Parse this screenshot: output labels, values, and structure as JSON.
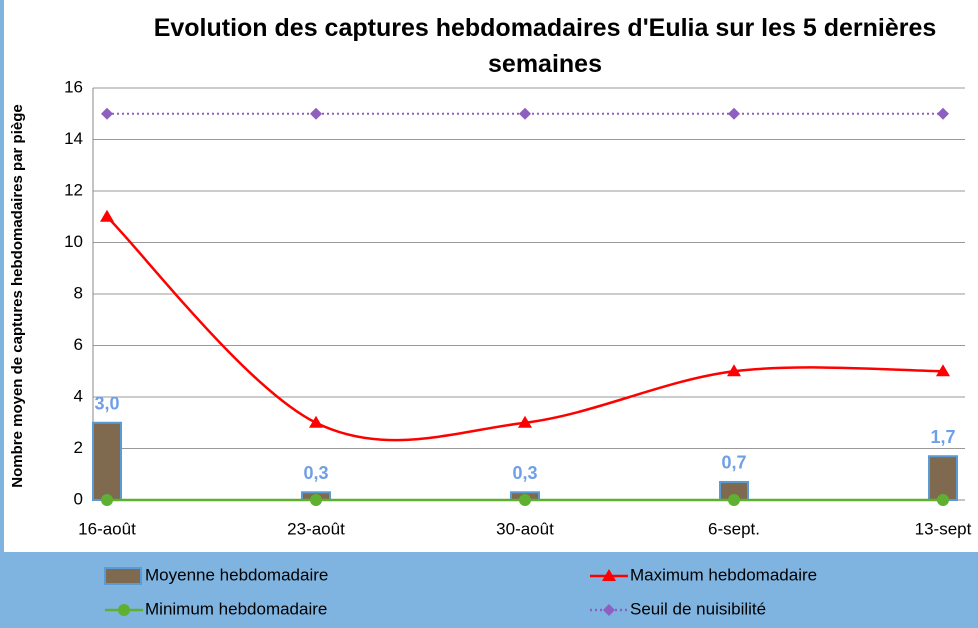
{
  "chart_data": {
    "type": "line",
    "title": "Evolution des captures hebdomadaires d'Eulia sur les 5 dernières semaines",
    "y_label": "Nombre moyen de captures hebdomadaires par piège",
    "categories": [
      "16-août",
      "23-août",
      "30-août",
      "6-sept.",
      "13-sept"
    ],
    "ylim": [
      0,
      16
    ],
    "yticks": [
      0,
      2,
      4,
      6,
      8,
      10,
      12,
      14,
      16
    ],
    "grid": true,
    "legend": "bottom",
    "series": [
      {
        "name": "Moyenne hebdomadaire",
        "type": "bar",
        "color": "#7f6a4f",
        "values": [
          3.0,
          0.3,
          0.3,
          0.7,
          1.7
        ],
        "value_labels": [
          "3,0",
          "0,3",
          "0,3",
          "0,7",
          "1,7"
        ]
      },
      {
        "name": "Maximum hebdomadaire",
        "type": "line",
        "smooth": true,
        "marker": "triangle",
        "color": "#ff0000",
        "values": [
          11,
          3,
          3,
          5,
          5
        ]
      },
      {
        "name": "Minimum hebdomadaire",
        "type": "line",
        "marker": "circle",
        "color": "#5fb030",
        "values": [
          0,
          0,
          0,
          0,
          0
        ]
      },
      {
        "name": "Seuil de nuisibilité",
        "type": "line",
        "dashed": true,
        "marker": "diamond",
        "color": "#8f5fbf",
        "values": [
          15,
          15,
          15,
          15,
          15
        ]
      }
    ]
  }
}
